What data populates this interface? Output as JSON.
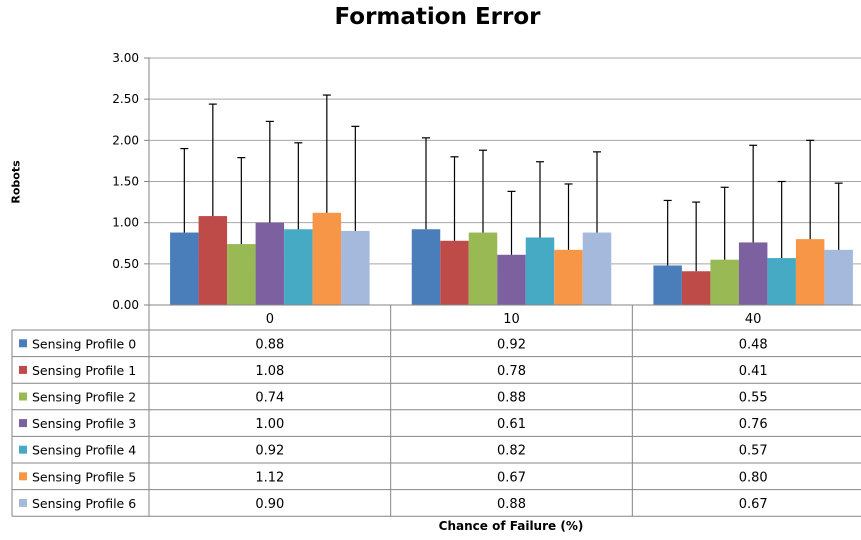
{
  "chart_data": {
    "type": "bar",
    "title": "Formation Error",
    "xlabel": "Chance of Failure (%)",
    "ylabel": "Robots",
    "ylim": [
      0,
      3
    ],
    "yticks": [
      "0.00",
      "0.50",
      "1.00",
      "1.50",
      "2.00",
      "2.50",
      "3.00"
    ],
    "grid": true,
    "legend": "data-table-left",
    "categories": [
      "0",
      "10",
      "40"
    ],
    "series": [
      {
        "name": "Sensing Profile 0",
        "color": "#4a7ebb",
        "values": [
          0.88,
          0.92,
          0.48
        ],
        "labels": [
          "0.88",
          "0.92",
          "0.48"
        ],
        "err_top": [
          1.9,
          2.03,
          1.27
        ]
      },
      {
        "name": "Sensing Profile 1",
        "color": "#be4b48",
        "values": [
          1.08,
          0.78,
          0.41
        ],
        "labels": [
          "1.08",
          "0.78",
          "0.41"
        ],
        "err_top": [
          2.44,
          1.8,
          1.25
        ]
      },
      {
        "name": "Sensing Profile 2",
        "color": "#98b954",
        "values": [
          0.74,
          0.88,
          0.55
        ],
        "labels": [
          "0.74",
          "0.88",
          "0.55"
        ],
        "err_top": [
          1.79,
          1.88,
          1.43
        ]
      },
      {
        "name": "Sensing Profile 3",
        "color": "#7d60a0",
        "values": [
          1.0,
          0.61,
          0.76
        ],
        "labels": [
          "1.00",
          "0.61",
          "0.76"
        ],
        "err_top": [
          2.23,
          1.38,
          1.94
        ]
      },
      {
        "name": "Sensing Profile 4",
        "color": "#46aac5",
        "values": [
          0.92,
          0.82,
          0.57
        ],
        "labels": [
          "0.92",
          "0.82",
          "0.57"
        ],
        "err_top": [
          1.97,
          1.74,
          1.5
        ]
      },
      {
        "name": "Sensing Profile 5",
        "color": "#f79646",
        "values": [
          1.12,
          0.67,
          0.8
        ],
        "labels": [
          "1.12",
          "0.67",
          "0.80"
        ],
        "err_top": [
          2.55,
          1.47,
          2.0
        ]
      },
      {
        "name": "Sensing Profile 6",
        "color": "#a5b9dc",
        "values": [
          0.9,
          0.88,
          0.67
        ],
        "labels": [
          "0.90",
          "0.88",
          "0.67"
        ],
        "err_top": [
          2.17,
          1.86,
          1.48
        ]
      }
    ]
  }
}
